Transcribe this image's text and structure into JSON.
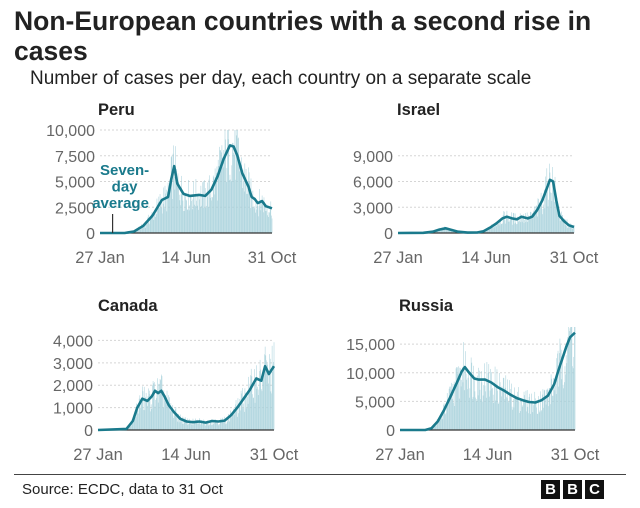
{
  "header": {
    "title": "Non-European countries with a second rise in cases",
    "subtitle": "Number of cases per day, each country on a separate scale"
  },
  "footer": {
    "source": "Source: ECDC, data to 31 Oct",
    "logo_letters": [
      "B",
      "B",
      "C"
    ]
  },
  "colors": {
    "line": "#1a7a8c",
    "bar": "#a9d2dc",
    "axis": "#666666",
    "grid": "#d5d5d5",
    "text": "#222222"
  },
  "chart_data": [
    {
      "type": "line",
      "title": "Peru",
      "x_start": "27 Jan",
      "x_end": "31 Oct",
      "xticks": [
        {
          "label": "27 Jan",
          "day": 0
        },
        {
          "label": "14 Jun",
          "day": 139
        },
        {
          "label": "31 Oct",
          "day": 278
        }
      ],
      "yticks": [
        0,
        2500,
        5000,
        7500,
        10000
      ],
      "ytick_labels": [
        "0",
        "2,500",
        "5,000",
        "7,500",
        "10,000"
      ],
      "ylim": [
        0,
        10000
      ],
      "series_name": "Seven-day average",
      "annotation": {
        "text": [
          "Seven-",
          "day",
          "average"
        ],
        "day": 85
      },
      "points": [
        [
          0,
          0
        ],
        [
          40,
          0
        ],
        [
          55,
          150
        ],
        [
          70,
          700
        ],
        [
          85,
          1700
        ],
        [
          100,
          3200
        ],
        [
          110,
          3500
        ],
        [
          115,
          5200
        ],
        [
          120,
          6500
        ],
        [
          125,
          4800
        ],
        [
          135,
          3800
        ],
        [
          145,
          3600
        ],
        [
          160,
          3700
        ],
        [
          170,
          3600
        ],
        [
          180,
          4200
        ],
        [
          190,
          5500
        ],
        [
          200,
          7200
        ],
        [
          210,
          8500
        ],
        [
          216,
          8400
        ],
        [
          222,
          7500
        ],
        [
          230,
          5800
        ],
        [
          240,
          4500
        ],
        [
          245,
          3500
        ],
        [
          250,
          3300
        ],
        [
          255,
          2900
        ],
        [
          262,
          3100
        ],
        [
          268,
          2600
        ],
        [
          278,
          2400
        ]
      ]
    },
    {
      "type": "line",
      "title": "Israel",
      "x_start": "27 Jan",
      "x_end": "31 Oct",
      "xticks": [
        {
          "label": "27 Jan",
          "day": 0
        },
        {
          "label": "14 Jun",
          "day": 139
        },
        {
          "label": "31 Oct",
          "day": 278
        }
      ],
      "yticks": [
        0,
        3000,
        6000,
        9000
      ],
      "ytick_labels": [
        "0",
        "3,000",
        "6,000",
        "9,000"
      ],
      "ylim": [
        0,
        12000
      ],
      "points": [
        [
          0,
          0
        ],
        [
          40,
          20
        ],
        [
          55,
          150
        ],
        [
          65,
          400
        ],
        [
          75,
          550
        ],
        [
          85,
          350
        ],
        [
          95,
          150
        ],
        [
          110,
          50
        ],
        [
          125,
          60
        ],
        [
          135,
          200
        ],
        [
          145,
          600
        ],
        [
          155,
          1100
        ],
        [
          165,
          1700
        ],
        [
          172,
          1900
        ],
        [
          180,
          1700
        ],
        [
          188,
          1600
        ],
        [
          195,
          1900
        ],
        [
          205,
          1700
        ],
        [
          212,
          1900
        ],
        [
          220,
          2700
        ],
        [
          228,
          3800
        ],
        [
          235,
          5200
        ],
        [
          240,
          6200
        ],
        [
          245,
          6000
        ],
        [
          250,
          3800
        ],
        [
          255,
          2000
        ],
        [
          262,
          1400
        ],
        [
          270,
          900
        ],
        [
          278,
          700
        ]
      ]
    },
    {
      "type": "line",
      "title": "Canada",
      "x_start": "27 Jan",
      "x_end": "31 Oct",
      "xticks": [
        {
          "label": "27 Jan",
          "day": 0
        },
        {
          "label": "14 Jun",
          "day": 139
        },
        {
          "label": "31 Oct",
          "day": 278
        }
      ],
      "yticks": [
        0,
        1000,
        2000,
        3000,
        4000
      ],
      "ytick_labels": [
        "0",
        "1,000",
        "2,000",
        "3,000",
        "4,000"
      ],
      "ylim": [
        0,
        4600
      ],
      "points": [
        [
          0,
          0
        ],
        [
          45,
          50
        ],
        [
          55,
          400
        ],
        [
          62,
          1000
        ],
        [
          70,
          1400
        ],
        [
          78,
          1300
        ],
        [
          85,
          1500
        ],
        [
          90,
          1750
        ],
        [
          95,
          1650
        ],
        [
          100,
          1750
        ],
        [
          105,
          1500
        ],
        [
          112,
          1100
        ],
        [
          120,
          800
        ],
        [
          130,
          500
        ],
        [
          140,
          380
        ],
        [
          150,
          350
        ],
        [
          160,
          380
        ],
        [
          170,
          330
        ],
        [
          180,
          400
        ],
        [
          190,
          380
        ],
        [
          200,
          420
        ],
        [
          210,
          650
        ],
        [
          220,
          1000
        ],
        [
          230,
          1400
        ],
        [
          240,
          1800
        ],
        [
          250,
          2300
        ],
        [
          258,
          2200
        ],
        [
          264,
          2850
        ],
        [
          270,
          2500
        ],
        [
          278,
          2850
        ]
      ]
    },
    {
      "type": "line",
      "title": "Russia",
      "x_start": "27 Jan",
      "x_end": "31 Oct",
      "xticks": [
        {
          "label": "27 Jan",
          "day": 0
        },
        {
          "label": "14 Jun",
          "day": 139
        },
        {
          "label": "31 Oct",
          "day": 278
        }
      ],
      "yticks": [
        0,
        5000,
        10000,
        15000
      ],
      "ytick_labels": [
        "0",
        "5,000",
        "10,000",
        "15,000"
      ],
      "ylim": [
        0,
        18000
      ],
      "points": [
        [
          0,
          0
        ],
        [
          40,
          0
        ],
        [
          50,
          300
        ],
        [
          60,
          1500
        ],
        [
          70,
          3500
        ],
        [
          80,
          5800
        ],
        [
          90,
          8200
        ],
        [
          98,
          10200
        ],
        [
          103,
          11000
        ],
        [
          110,
          10000
        ],
        [
          118,
          9000
        ],
        [
          125,
          8800
        ],
        [
          135,
          8800
        ],
        [
          145,
          8300
        ],
        [
          155,
          7500
        ],
        [
          165,
          6900
        ],
        [
          175,
          6200
        ],
        [
          185,
          5600
        ],
        [
          195,
          5200
        ],
        [
          205,
          4900
        ],
        [
          215,
          4800
        ],
        [
          225,
          5200
        ],
        [
          235,
          6000
        ],
        [
          245,
          8000
        ],
        [
          252,
          10500
        ],
        [
          258,
          12500
        ],
        [
          264,
          14500
        ],
        [
          270,
          16200
        ],
        [
          278,
          17000
        ]
      ]
    }
  ]
}
